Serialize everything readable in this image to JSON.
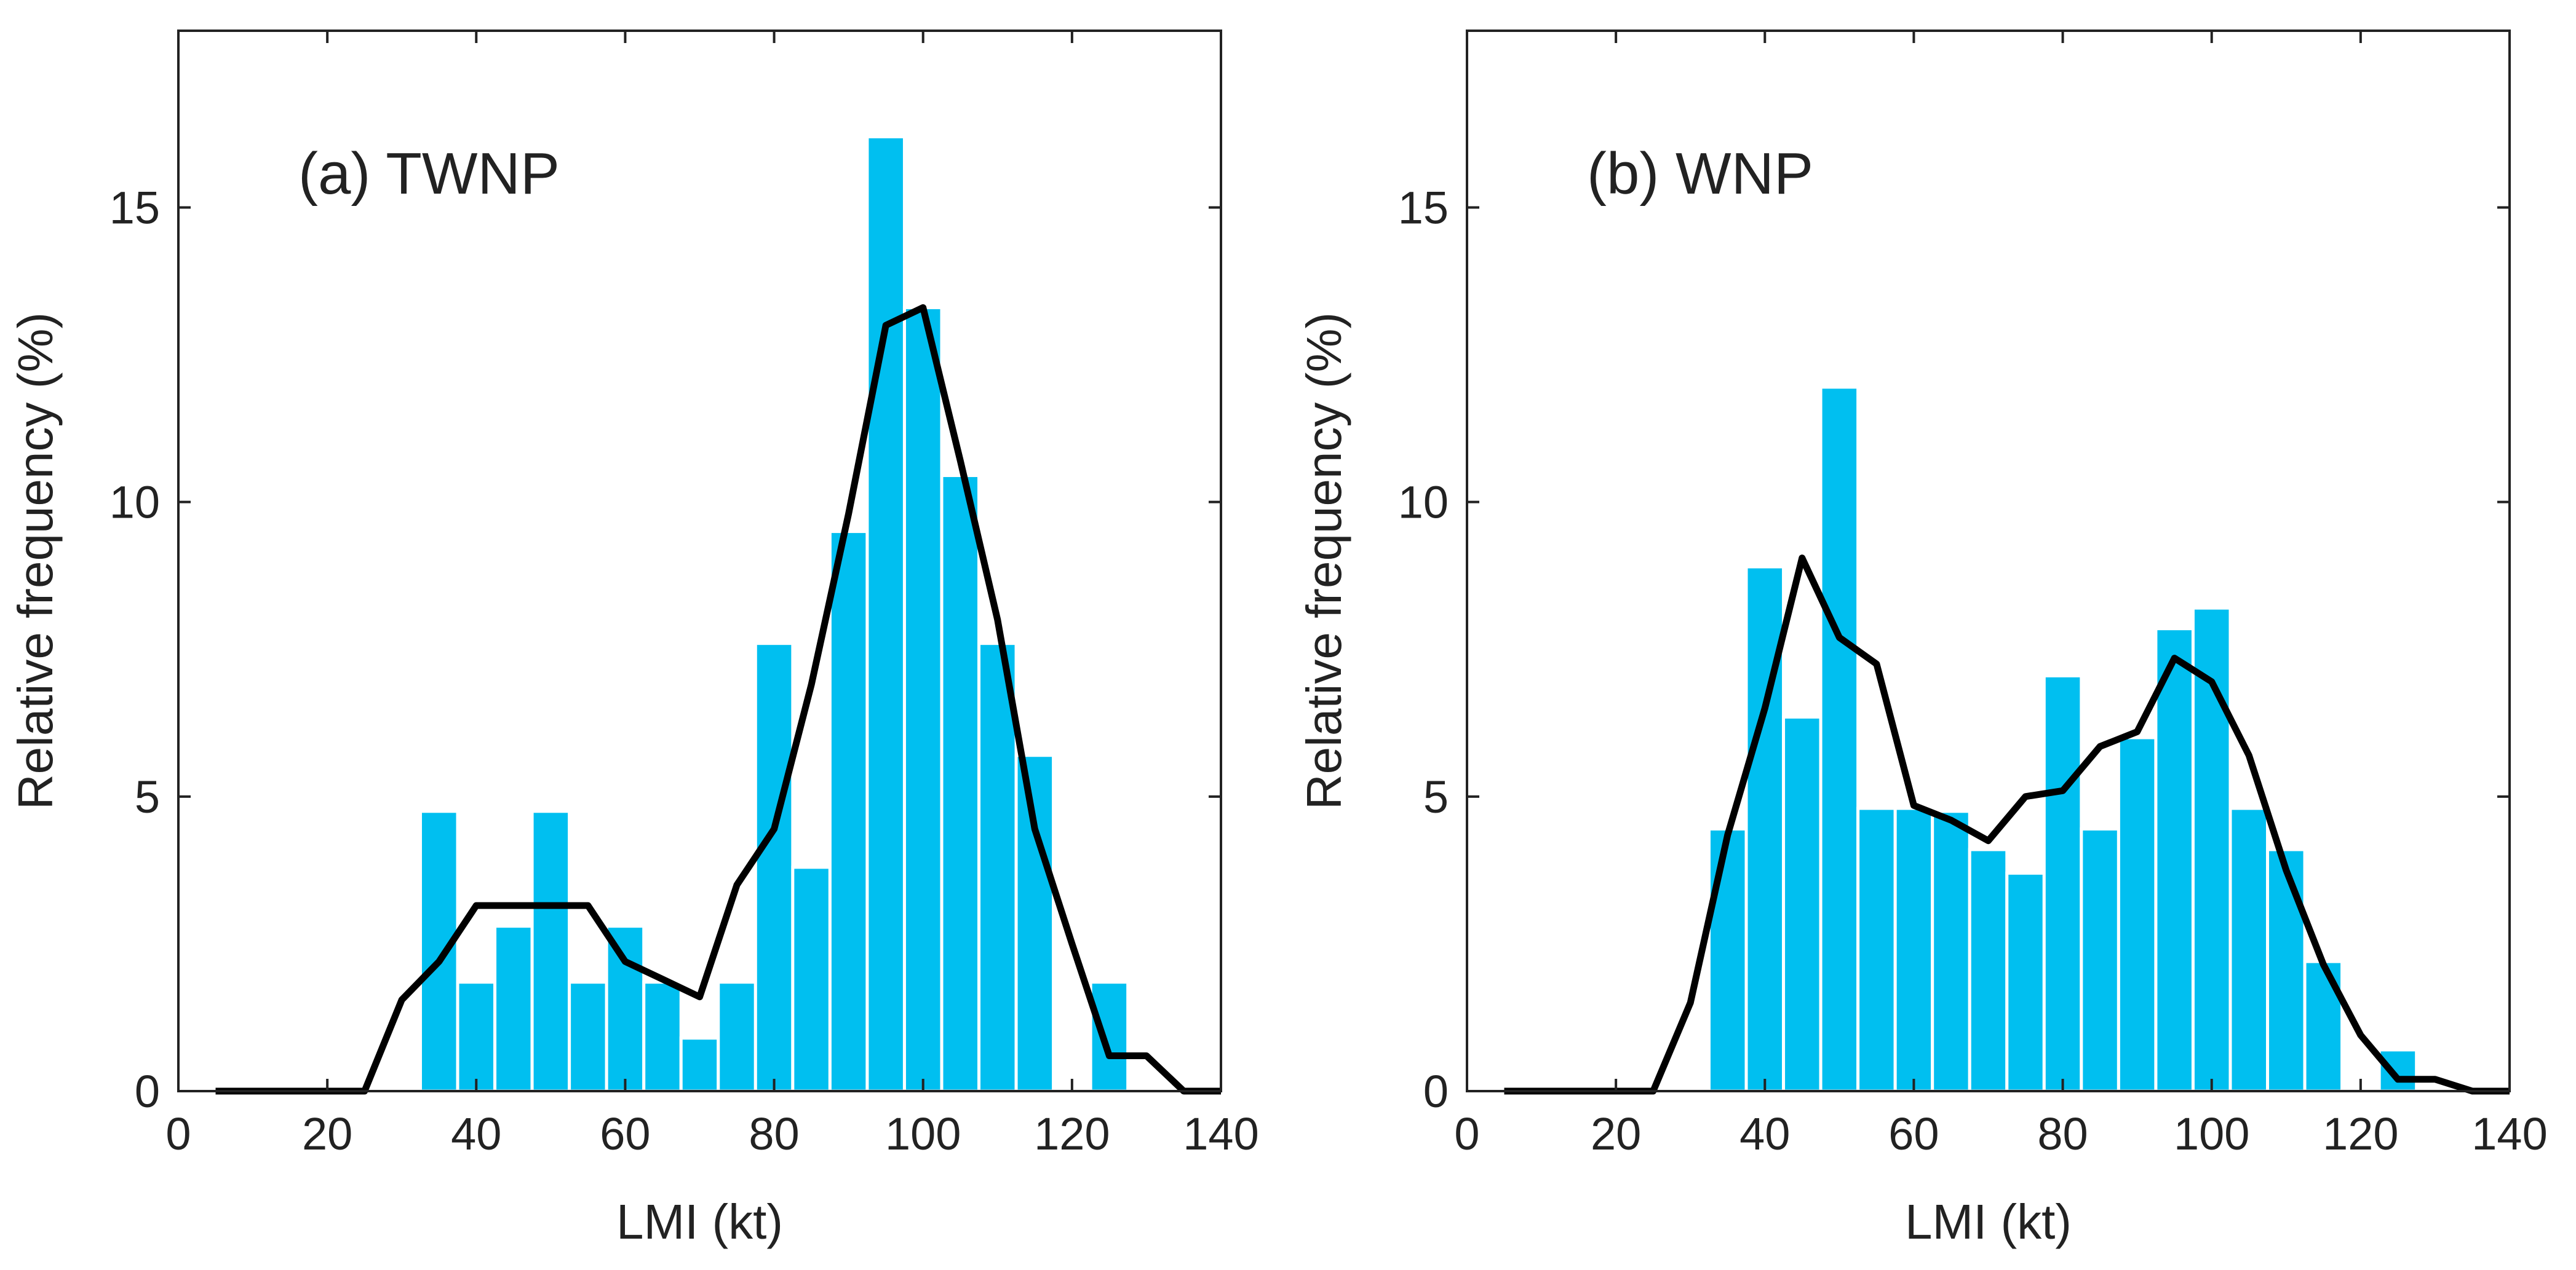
{
  "chart_data": [
    {
      "type": "bar",
      "panel_label": "(a) TWNP",
      "xlabel": "LMI (kt)",
      "ylabel": "Relative frequency (%)",
      "xlim": [
        0,
        140
      ],
      "ylim": [
        0,
        18
      ],
      "xticks": [
        0,
        20,
        40,
        60,
        80,
        100,
        120,
        140
      ],
      "yticks": [
        0,
        5,
        10,
        15
      ],
      "bar_color": "#00BFF0",
      "bin_width": 5,
      "bars": {
        "x": [
          35,
          40,
          45,
          50,
          55,
          60,
          65,
          70,
          75,
          80,
          85,
          90,
          95,
          100,
          105,
          110,
          115,
          120,
          125
        ],
        "values": [
          4.75,
          1.85,
          2.8,
          4.75,
          1.85,
          2.8,
          1.85,
          0.9,
          1.85,
          7.6,
          3.8,
          9.5,
          16.2,
          13.3,
          10.45,
          7.6,
          5.7,
          0,
          1.85
        ]
      },
      "line": {
        "color": "#000000",
        "x": [
          5,
          10,
          15,
          20,
          25,
          30,
          35,
          40,
          45,
          50,
          55,
          60,
          65,
          70,
          75,
          80,
          85,
          90,
          95,
          100,
          105,
          110,
          115,
          120,
          125,
          130,
          135,
          140
        ],
        "y": [
          0,
          0,
          0,
          0,
          0,
          1.55,
          2.2,
          3.15,
          3.15,
          3.15,
          3.15,
          2.2,
          1.9,
          1.6,
          3.5,
          4.45,
          6.9,
          9.8,
          13.0,
          13.3,
          10.7,
          8.0,
          4.45,
          2.5,
          0.6,
          0.6,
          0,
          0
        ]
      }
    },
    {
      "type": "bar",
      "panel_label": "(b) WNP",
      "xlabel": "LMI (kt)",
      "ylabel": "Relative frequency (%)",
      "xlim": [
        0,
        140
      ],
      "ylim": [
        0,
        18
      ],
      "xticks": [
        0,
        20,
        40,
        60,
        80,
        100,
        120,
        140
      ],
      "yticks": [
        0,
        5,
        10,
        15
      ],
      "bar_color": "#00BFF0",
      "bin_width": 5,
      "bars": {
        "x": [
          35,
          40,
          45,
          50,
          55,
          60,
          65,
          70,
          75,
          80,
          85,
          90,
          95,
          100,
          105,
          110,
          115,
          120,
          125
        ],
        "values": [
          4.45,
          8.9,
          6.35,
          11.95,
          4.8,
          4.8,
          4.75,
          4.1,
          3.7,
          7.05,
          4.45,
          6.0,
          7.85,
          8.2,
          4.8,
          4.1,
          2.2,
          0,
          0.7
        ]
      },
      "line": {
        "color": "#000000",
        "x": [
          5,
          10,
          15,
          20,
          25,
          30,
          35,
          40,
          45,
          50,
          55,
          60,
          65,
          70,
          75,
          80,
          85,
          90,
          95,
          100,
          105,
          110,
          115,
          120,
          125,
          130,
          135,
          140
        ],
        "y": [
          0,
          0,
          0,
          0,
          0,
          1.5,
          4.35,
          6.5,
          9.05,
          7.7,
          7.25,
          4.85,
          4.6,
          4.25,
          5.0,
          5.1,
          5.85,
          6.1,
          7.35,
          6.95,
          5.7,
          3.75,
          2.15,
          0.95,
          0.2,
          0.2,
          0,
          0
        ]
      }
    }
  ]
}
